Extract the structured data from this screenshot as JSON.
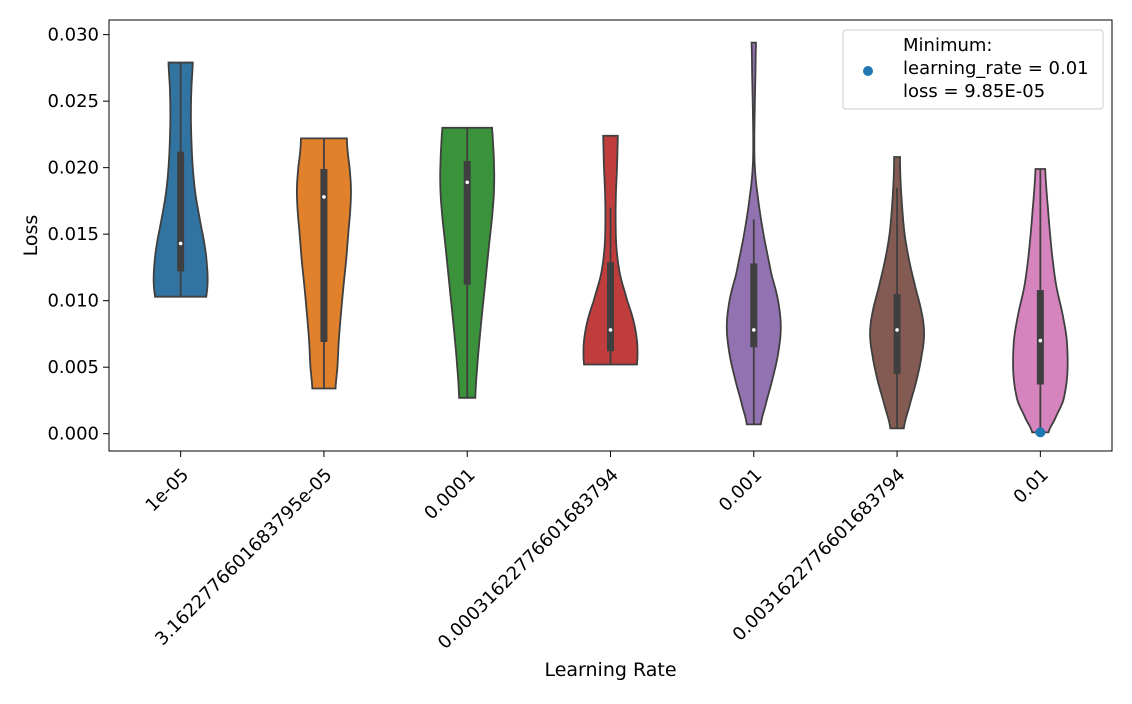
{
  "chart_data": {
    "type": "violin",
    "xlabel": "Learning Rate",
    "ylabel": "Loss",
    "ylim": [
      -0.0013,
      0.0311
    ],
    "y_ticks": [
      0.0,
      0.005,
      0.01,
      0.015,
      0.02,
      0.025,
      0.03
    ],
    "y_tick_labels": [
      "0.000",
      "0.005",
      "0.010",
      "0.015",
      "0.020",
      "0.025",
      "0.030"
    ],
    "categories": [
      "1e-05",
      "3.1622776601683795e-05",
      "0.0001",
      "0.00031622776601683794",
      "0.001",
      "0.0031622776601683794",
      "0.01"
    ],
    "grid": false,
    "legend_position": "top-right",
    "violins": [
      {
        "category": "1e-05",
        "color": "#3274a1",
        "min": 0.0103,
        "max": 0.0279,
        "q1": 0.0122,
        "median": 0.0143,
        "q3": 0.0212,
        "whisker_low": 0.0103,
        "whisker_high": 0.0279,
        "profile": [
          [
            0.0103,
            0.95
          ],
          [
            0.0108,
            0.98
          ],
          [
            0.0115,
            1.0
          ],
          [
            0.0125,
            0.98
          ],
          [
            0.014,
            0.9
          ],
          [
            0.016,
            0.72
          ],
          [
            0.018,
            0.55
          ],
          [
            0.02,
            0.45
          ],
          [
            0.022,
            0.4
          ],
          [
            0.024,
            0.38
          ],
          [
            0.026,
            0.4
          ],
          [
            0.0279,
            0.45
          ]
        ]
      },
      {
        "category": "3.1622776601683795e-05",
        "color": "#e1812c",
        "min": 0.0034,
        "max": 0.0222,
        "q1": 0.0069,
        "median": 0.0178,
        "q3": 0.0199,
        "whisker_low": 0.0034,
        "whisker_high": 0.0222,
        "profile": [
          [
            0.0034,
            0.43
          ],
          [
            0.005,
            0.5
          ],
          [
            0.007,
            0.55
          ],
          [
            0.009,
            0.63
          ],
          [
            0.011,
            0.72
          ],
          [
            0.013,
            0.82
          ],
          [
            0.015,
            0.9
          ],
          [
            0.017,
            0.98
          ],
          [
            0.0185,
            1.0
          ],
          [
            0.02,
            0.95
          ],
          [
            0.0212,
            0.88
          ],
          [
            0.0222,
            0.85
          ]
        ]
      },
      {
        "category": "0.0001",
        "color": "#3a923a",
        "min": 0.0027,
        "max": 0.023,
        "q1": 0.0112,
        "median": 0.0189,
        "q3": 0.0205,
        "whisker_low": 0.0027,
        "whisker_high": 0.023,
        "profile": [
          [
            0.0027,
            0.3
          ],
          [
            0.005,
            0.37
          ],
          [
            0.008,
            0.5
          ],
          [
            0.011,
            0.65
          ],
          [
            0.014,
            0.8
          ],
          [
            0.017,
            0.95
          ],
          [
            0.019,
            1.0
          ],
          [
            0.021,
            0.98
          ],
          [
            0.0225,
            0.94
          ],
          [
            0.023,
            0.92
          ]
        ]
      },
      {
        "category": "0.00031622776601683794",
        "color": "#c03d3e",
        "min": 0.0052,
        "max": 0.0224,
        "q1": 0.0062,
        "median": 0.0078,
        "q3": 0.0129,
        "whisker_low": 0.0052,
        "whisker_high": 0.017,
        "profile": [
          [
            0.0052,
            0.98
          ],
          [
            0.0058,
            1.0
          ],
          [
            0.007,
            0.98
          ],
          [
            0.0085,
            0.85
          ],
          [
            0.01,
            0.62
          ],
          [
            0.012,
            0.35
          ],
          [
            0.014,
            0.22
          ],
          [
            0.016,
            0.19
          ],
          [
            0.018,
            0.2
          ],
          [
            0.02,
            0.24
          ],
          [
            0.0215,
            0.26
          ],
          [
            0.0224,
            0.27
          ]
        ]
      },
      {
        "category": "0.001",
        "color": "#9372b2",
        "min": 0.0007,
        "max": 0.0294,
        "q1": 0.0065,
        "median": 0.0078,
        "q3": 0.0128,
        "whisker_low": 0.0007,
        "whisker_high": 0.0161,
        "profile": [
          [
            0.0007,
            0.26
          ],
          [
            0.002,
            0.42
          ],
          [
            0.004,
            0.68
          ],
          [
            0.006,
            0.9
          ],
          [
            0.008,
            1.0
          ],
          [
            0.01,
            0.9
          ],
          [
            0.012,
            0.65
          ],
          [
            0.015,
            0.36
          ],
          [
            0.018,
            0.14
          ],
          [
            0.02,
            0.04
          ],
          [
            0.022,
            0.02
          ],
          [
            0.025,
            0.04
          ],
          [
            0.027,
            0.06
          ],
          [
            0.0285,
            0.07
          ],
          [
            0.0294,
            0.08
          ]
        ]
      },
      {
        "category": "0.0031622776601683794",
        "color": "#845b53",
        "min": 0.0004,
        "max": 0.0208,
        "q1": 0.0045,
        "median": 0.0078,
        "q3": 0.0105,
        "whisker_low": 0.0004,
        "whisker_high": 0.0185,
        "profile": [
          [
            0.0004,
            0.25
          ],
          [
            0.002,
            0.45
          ],
          [
            0.004,
            0.72
          ],
          [
            0.006,
            0.92
          ],
          [
            0.0075,
            1.0
          ],
          [
            0.009,
            0.92
          ],
          [
            0.011,
            0.68
          ],
          [
            0.013,
            0.45
          ],
          [
            0.015,
            0.28
          ],
          [
            0.017,
            0.19
          ],
          [
            0.019,
            0.13
          ],
          [
            0.0205,
            0.11
          ],
          [
            0.0208,
            0.11
          ]
        ]
      },
      {
        "category": "0.01",
        "color": "#d684bd",
        "min": 0.0001,
        "max": 0.0199,
        "q1": 0.0037,
        "median": 0.007,
        "q3": 0.0108,
        "whisker_low": 0.0001,
        "whisker_high": 0.0199,
        "profile": [
          [
            0.0001,
            0.3
          ],
          [
            0.001,
            0.52
          ],
          [
            0.0025,
            0.85
          ],
          [
            0.0045,
            1.0
          ],
          [
            0.007,
            0.98
          ],
          [
            0.009,
            0.82
          ],
          [
            0.011,
            0.6
          ],
          [
            0.013,
            0.46
          ],
          [
            0.015,
            0.36
          ],
          [
            0.017,
            0.28
          ],
          [
            0.0185,
            0.22
          ],
          [
            0.0199,
            0.18
          ]
        ]
      }
    ],
    "minimum_point": {
      "x": "0.01",
      "y": 9.85e-05,
      "color": "#1f77b4"
    },
    "legend": {
      "entries": [
        {
          "marker": "dot",
          "color": "#1f77b4",
          "lines": [
            "Minimum:",
            "learning_rate = 0.01",
            "loss = 9.85E-05"
          ]
        }
      ]
    }
  }
}
